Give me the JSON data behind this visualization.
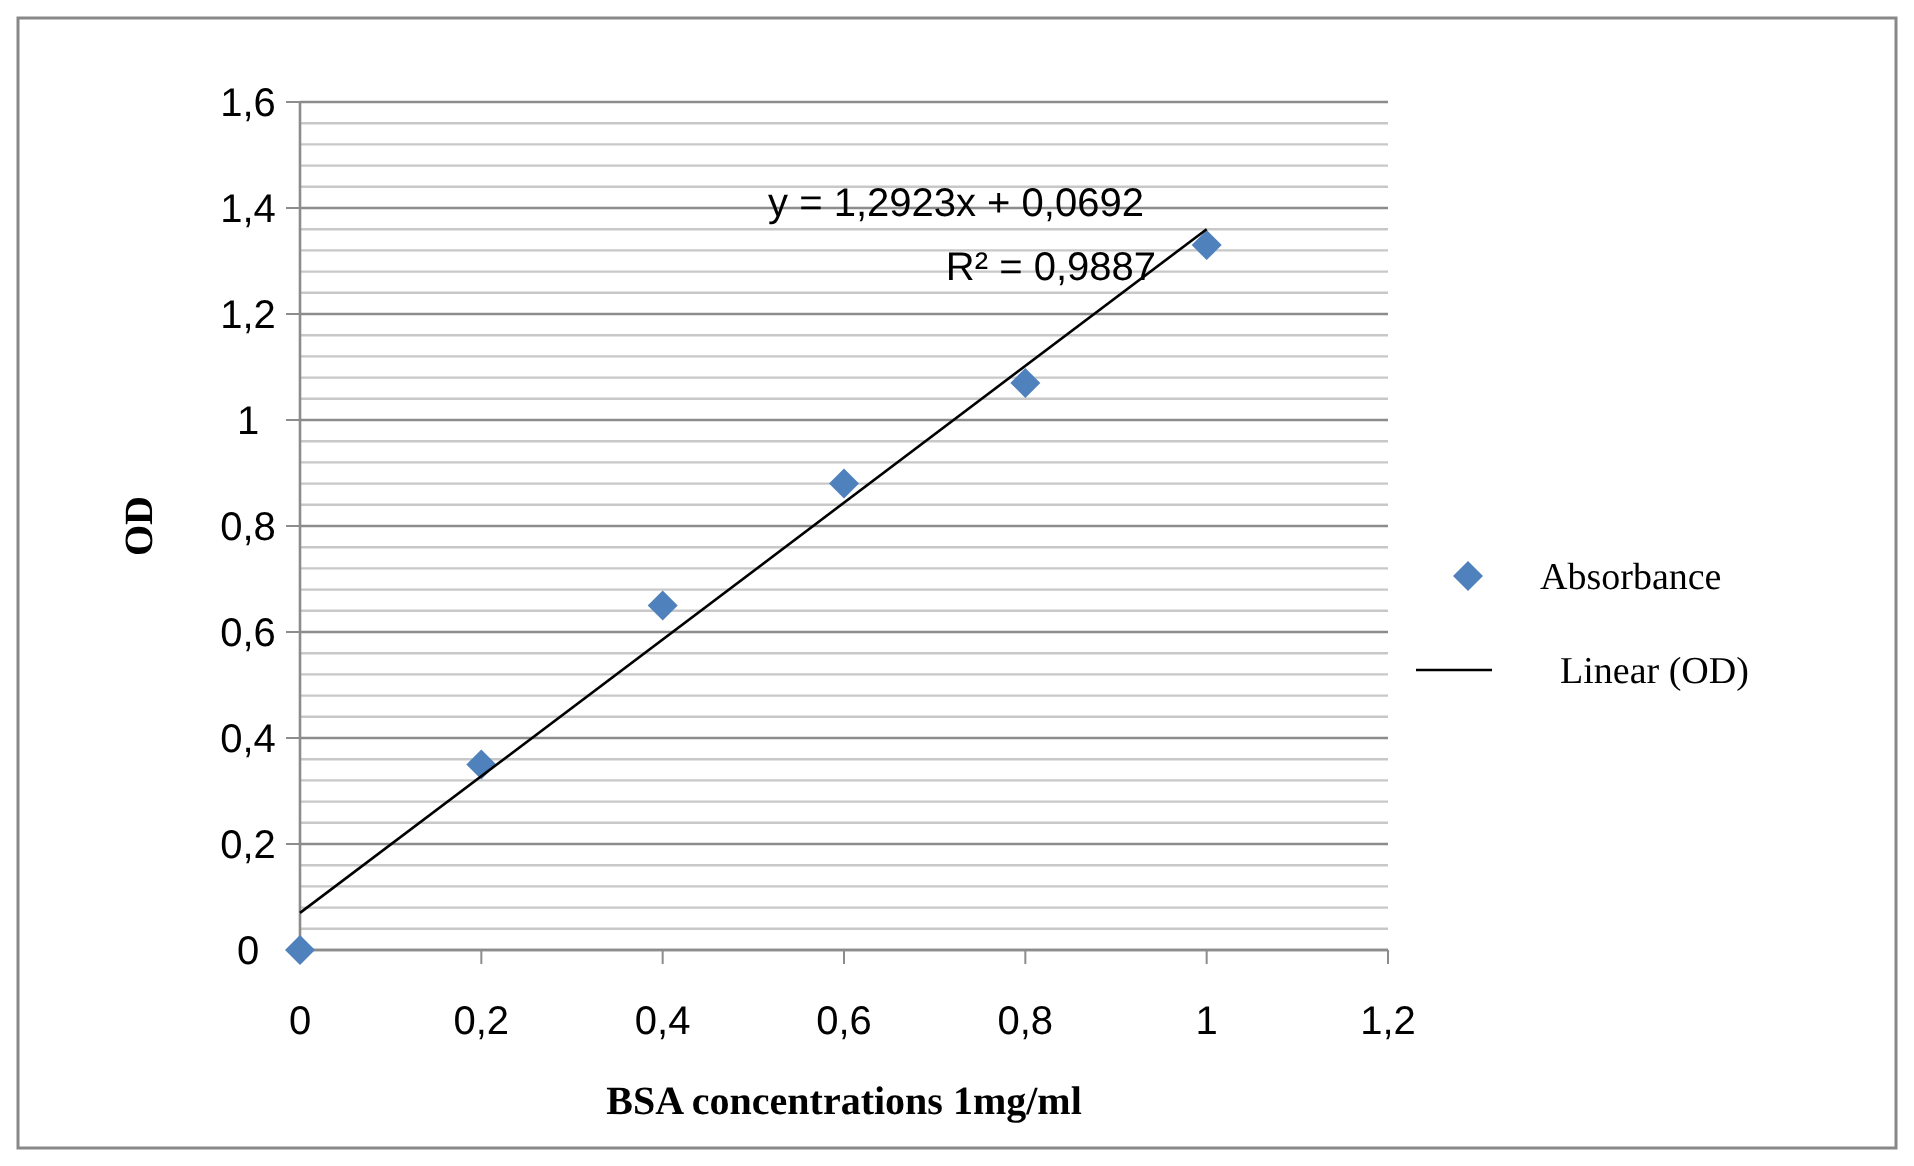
{
  "chart_data": {
    "type": "scatter",
    "xlabel": "BSA concentrations 1mg/ml",
    "ylabel": "OD",
    "annotations": [
      "y = 1,2923x + 0,0692",
      "R² = 0,9887"
    ],
    "x": [
      0,
      0.2,
      0.4,
      0.6,
      0.8,
      1
    ],
    "series": [
      {
        "name": "Absorbance",
        "color": "#4f81bd",
        "marker": "diamond",
        "values": [
          0,
          0.35,
          0.65,
          0.88,
          1.07,
          1.33
        ]
      },
      {
        "name": "Linear (OD)",
        "color": "#000000",
        "type": "line",
        "marker": "none",
        "line_style": "solid",
        "x": [
          0,
          1
        ],
        "values": [
          0.07,
          1.36
        ]
      }
    ],
    "xlim": [
      0,
      1.2
    ],
    "ylim": [
      0,
      1.6
    ],
    "xticks": [
      0,
      {
        "value": 0.2,
        "label": "0,2"
      },
      {
        "value": 0.4,
        "label": "0,4"
      },
      {
        "value": 0.6,
        "label": "0,6"
      },
      {
        "value": 0.8,
        "label": "0,8"
      },
      1,
      {
        "value": 1.2,
        "label": "1,2"
      }
    ],
    "yticks": [
      0,
      {
        "value": 0.04,
        "label": null
      },
      {
        "value": 0.08,
        "label": null
      },
      {
        "value": 0.12,
        "label": null
      },
      {
        "value": 0.16,
        "label": null
      },
      {
        "value": 0.2,
        "label": "0,2"
      },
      {
        "value": 0.24,
        "label": null
      },
      {
        "value": 0.28,
        "label": null
      },
      {
        "value": 0.32,
        "label": null
      },
      {
        "value": 0.36,
        "label": null
      },
      {
        "value": 0.4,
        "label": "0,4"
      },
      {
        "value": 0.44,
        "label": null
      },
      {
        "value": 0.48,
        "label": null
      },
      {
        "value": 0.52,
        "label": null
      },
      {
        "value": 0.56,
        "label": null
      },
      {
        "value": 0.6,
        "label": "0,6"
      },
      {
        "value": 0.64,
        "label": null
      },
      {
        "value": 0.68,
        "label": null
      },
      {
        "value": 0.72,
        "label": null
      },
      {
        "value": 0.76,
        "label": null
      },
      {
        "value": 0.8,
        "label": "0,8"
      },
      {
        "value": 0.84,
        "label": null
      },
      {
        "value": 0.88,
        "label": null
      },
      {
        "value": 0.92,
        "label": null
      },
      {
        "value": 0.96,
        "label": null
      },
      1,
      {
        "value": 1.04,
        "label": null
      },
      {
        "value": 1.08,
        "label": null
      },
      {
        "value": 1.12,
        "label": null
      },
      {
        "value": 1.16,
        "label": null
      },
      {
        "value": 1.2,
        "label": "1,2"
      },
      {
        "value": 1.24,
        "label": null
      },
      {
        "value": 1.28,
        "label": null
      },
      {
        "value": 1.32,
        "label": null
      },
      {
        "value": 1.36,
        "label": null
      },
      {
        "value": 1.4,
        "label": "1,4"
      },
      {
        "value": 1.44,
        "label": null
      },
      {
        "value": 1.48,
        "label": null
      },
      {
        "value": 1.52,
        "label": null
      },
      {
        "value": 1.56,
        "label": null
      },
      {
        "value": 1.6,
        "label": "1,6"
      }
    ],
    "grid": "y",
    "legend": "right"
  }
}
